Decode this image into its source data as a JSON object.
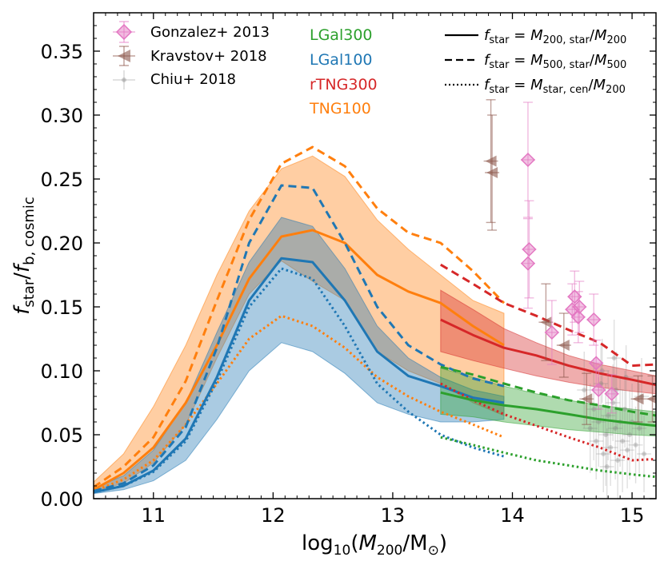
{
  "chart_data": {
    "type": "line",
    "xlabel": "log10(M200/M⊙)",
    "ylabel": "fstar/fb,cosmic",
    "xlim": [
      10.5,
      15.2
    ],
    "ylim": [
      0.0,
      0.38
    ],
    "xticks": [
      {
        "value": 11,
        "label": "11"
      },
      {
        "value": 12,
        "label": "12"
      },
      {
        "value": 13,
        "label": "13"
      },
      {
        "value": 14,
        "label": "14"
      },
      {
        "value": 15,
        "label": "15"
      }
    ],
    "yticks": [
      {
        "value": 0.0,
        "label": "0.00"
      },
      {
        "value": 0.05,
        "label": "0.05"
      },
      {
        "value": 0.1,
        "label": "0.10"
      },
      {
        "value": 0.15,
        "label": "0.15"
      },
      {
        "value": 0.2,
        "label": "0.20"
      },
      {
        "value": 0.25,
        "label": "0.25"
      },
      {
        "value": 0.3,
        "label": "0.30"
      },
      {
        "value": 0.35,
        "label": "0.35"
      }
    ],
    "colors": {
      "LGal300": "#2ca02c",
      "LGal100": "#1f77b4",
      "rTNG300": "#d62728",
      "TNG100": "#ff7f0e",
      "Gonzalez": "#e377c2",
      "Kravstov": "#8c564b",
      "Chiu": "#7f7f7f"
    },
    "bands": [
      {
        "name": "TNG100",
        "color": "#ff7f0e",
        "x": [
          10.5,
          10.75,
          11.0,
          11.27,
          11.53,
          11.8,
          12.07,
          12.33,
          12.6,
          12.87,
          13.13,
          13.4,
          13.67,
          13.93
        ],
        "upper": [
          0.013,
          0.035,
          0.072,
          0.12,
          0.175,
          0.225,
          0.258,
          0.268,
          0.252,
          0.218,
          0.195,
          0.175,
          0.155,
          0.145
        ],
        "lower": [
          0.006,
          0.012,
          0.028,
          0.058,
          0.11,
          0.16,
          0.186,
          0.17,
          0.155,
          0.115,
          0.1,
          0.09,
          0.075,
          0.065
        ]
      },
      {
        "name": "LGal100",
        "color": "#1f77b4",
        "x": [
          10.5,
          10.75,
          11.0,
          11.27,
          11.53,
          11.8,
          12.07,
          12.33,
          12.6,
          12.87,
          13.13,
          13.4,
          13.67,
          13.93
        ],
        "upper": [
          0.008,
          0.018,
          0.038,
          0.075,
          0.13,
          0.185,
          0.22,
          0.213,
          0.18,
          0.135,
          0.11,
          0.095,
          0.085,
          0.08
        ],
        "lower": [
          0.004,
          0.007,
          0.014,
          0.03,
          0.062,
          0.1,
          0.122,
          0.115,
          0.098,
          0.075,
          0.066,
          0.06,
          0.06,
          0.062
        ]
      },
      {
        "name": "rTNG300",
        "color": "#d62728",
        "x": [
          13.4,
          13.67,
          13.93,
          14.2,
          14.47,
          14.73,
          15.0,
          15.2
        ],
        "upper": [
          0.163,
          0.148,
          0.133,
          0.122,
          0.112,
          0.105,
          0.1,
          0.096
        ],
        "lower": [
          0.115,
          0.108,
          0.102,
          0.096,
          0.091,
          0.087,
          0.084,
          0.082
        ]
      },
      {
        "name": "LGal300",
        "color": "#2ca02c",
        "x": [
          13.4,
          13.67,
          13.93,
          14.2,
          14.47,
          14.73,
          15.0,
          15.2
        ],
        "upper": [
          0.102,
          0.095,
          0.088,
          0.082,
          0.077,
          0.073,
          0.07,
          0.068
        ],
        "lower": [
          0.066,
          0.064,
          0.06,
          0.057,
          0.054,
          0.052,
          0.05,
          0.049
        ]
      }
    ],
    "series": [
      {
        "name": "TNG100 M200",
        "model": "TNG100",
        "style": "solid",
        "color": "#ff7f0e",
        "x": [
          10.5,
          10.75,
          11.0,
          11.27,
          11.53,
          11.8,
          12.07,
          12.33,
          12.6,
          12.87,
          13.13,
          13.4,
          13.67,
          13.93
        ],
        "y": [
          0.007,
          0.02,
          0.04,
          0.075,
          0.12,
          0.172,
          0.205,
          0.21,
          0.2,
          0.175,
          0.162,
          0.153,
          0.135,
          0.12
        ]
      },
      {
        "name": "TNG100 M500",
        "model": "TNG100",
        "style": "dashed",
        "color": "#ff7f0e",
        "x": [
          10.5,
          10.75,
          11.0,
          11.27,
          11.53,
          11.8,
          12.07,
          12.33,
          12.6,
          12.87,
          13.13,
          13.4,
          13.67,
          13.93
        ],
        "y": [
          0.009,
          0.025,
          0.048,
          0.092,
          0.155,
          0.218,
          0.262,
          0.275,
          0.26,
          0.227,
          0.208,
          0.2,
          0.178,
          0.153
        ]
      },
      {
        "name": "TNG100 cen",
        "model": "TNG100",
        "style": "dotted",
        "color": "#ff7f0e",
        "x": [
          10.5,
          10.75,
          11.0,
          11.27,
          11.53,
          11.8,
          12.07,
          12.33,
          12.6,
          12.87,
          13.13,
          13.4,
          13.67,
          13.93
        ],
        "y": [
          0.006,
          0.015,
          0.03,
          0.058,
          0.09,
          0.125,
          0.143,
          0.135,
          0.118,
          0.095,
          0.08,
          0.068,
          0.058,
          0.048
        ]
      },
      {
        "name": "LGal100 M200",
        "model": "LGal100",
        "style": "solid",
        "color": "#1f77b4",
        "x": [
          10.5,
          10.75,
          11.0,
          11.27,
          11.53,
          11.8,
          12.07,
          12.33,
          12.6,
          12.87,
          13.13,
          13.4,
          13.67,
          13.93
        ],
        "y": [
          0.005,
          0.01,
          0.022,
          0.047,
          0.095,
          0.155,
          0.188,
          0.185,
          0.155,
          0.115,
          0.096,
          0.088,
          0.079,
          0.075
        ]
      },
      {
        "name": "LGal100 M500",
        "model": "LGal100",
        "style": "dashed",
        "color": "#1f77b4",
        "x": [
          10.5,
          10.75,
          11.0,
          11.27,
          11.53,
          11.8,
          12.07,
          12.33,
          12.6,
          12.87,
          13.13,
          13.4,
          13.67,
          13.93
        ],
        "y": [
          0.006,
          0.012,
          0.026,
          0.056,
          0.118,
          0.2,
          0.245,
          0.243,
          0.2,
          0.15,
          0.12,
          0.105,
          0.094,
          0.088
        ]
      },
      {
        "name": "LGal100 cen",
        "model": "LGal100",
        "style": "dotted",
        "color": "#1f77b4",
        "x": [
          10.5,
          10.75,
          11.0,
          11.27,
          11.53,
          11.8,
          12.07,
          12.33,
          12.6,
          12.87,
          13.13,
          13.4,
          13.67,
          13.93
        ],
        "y": [
          0.005,
          0.01,
          0.021,
          0.045,
          0.092,
          0.15,
          0.18,
          0.172,
          0.135,
          0.09,
          0.068,
          0.05,
          0.04,
          0.033
        ]
      },
      {
        "name": "rTNG300 M200",
        "model": "rTNG300",
        "style": "solid",
        "color": "#d62728",
        "x": [
          13.4,
          13.67,
          13.93,
          14.2,
          14.47,
          14.73,
          15.0,
          15.2
        ],
        "y": [
          0.14,
          0.128,
          0.118,
          0.112,
          0.104,
          0.098,
          0.093,
          0.089
        ]
      },
      {
        "name": "rTNG300 M500",
        "model": "rTNG300",
        "style": "dashed",
        "color": "#d62728",
        "x": [
          13.4,
          13.67,
          13.93,
          14.2,
          14.47,
          14.73,
          15.0,
          15.2
        ],
        "y": [
          0.183,
          0.168,
          0.153,
          0.143,
          0.132,
          0.122,
          0.104,
          0.105
        ]
      },
      {
        "name": "rTNG300 cen",
        "model": "rTNG300",
        "style": "dotted",
        "color": "#d62728",
        "x": [
          13.4,
          13.67,
          13.93,
          14.2,
          14.47,
          14.73,
          15.0,
          15.2
        ],
        "y": [
          0.09,
          0.077,
          0.066,
          0.057,
          0.048,
          0.04,
          0.03,
          0.031
        ]
      },
      {
        "name": "LGal300 M200",
        "model": "LGal300",
        "style": "solid",
        "color": "#2ca02c",
        "x": [
          13.4,
          13.67,
          13.93,
          14.2,
          14.47,
          14.73,
          15.0,
          15.2
        ],
        "y": [
          0.083,
          0.077,
          0.073,
          0.07,
          0.066,
          0.062,
          0.059,
          0.057
        ]
      },
      {
        "name": "LGal300 M500",
        "model": "LGal300",
        "style": "dashed",
        "color": "#2ca02c",
        "x": [
          13.4,
          13.67,
          13.93,
          14.2,
          14.47,
          14.73,
          15.0,
          15.2
        ],
        "y": [
          0.103,
          0.097,
          0.09,
          0.083,
          0.077,
          0.073,
          0.068,
          0.065
        ]
      },
      {
        "name": "LGal300 cen",
        "model": "LGal300",
        "style": "dotted",
        "color": "#2ca02c",
        "x": [
          13.4,
          13.67,
          13.93,
          14.2,
          14.47,
          14.73,
          15.0,
          15.2
        ],
        "y": [
          0.048,
          0.042,
          0.036,
          0.03,
          0.026,
          0.022,
          0.019,
          0.017
        ]
      }
    ],
    "observations": {
      "gonzalez": {
        "label": "Gonzalez+ 2013",
        "points": [
          {
            "x": 14.13,
            "y": 0.265,
            "err": 0.045
          },
          {
            "x": 14.14,
            "y": 0.195,
            "err": 0.038
          },
          {
            "x": 14.13,
            "y": 0.184,
            "err": 0.035
          },
          {
            "x": 14.33,
            "y": 0.13,
            "err": 0.025
          },
          {
            "x": 14.52,
            "y": 0.158,
            "err": 0.02
          },
          {
            "x": 14.5,
            "y": 0.148,
            "err": 0.02
          },
          {
            "x": 14.55,
            "y": 0.142,
            "err": 0.02
          },
          {
            "x": 14.56,
            "y": 0.15,
            "err": 0.02
          },
          {
            "x": 14.68,
            "y": 0.14,
            "err": 0.02
          },
          {
            "x": 14.7,
            "y": 0.106,
            "err": 0.018
          },
          {
            "x": 14.72,
            "y": 0.085,
            "err": 0.015
          },
          {
            "x": 14.83,
            "y": 0.082,
            "err": 0.015
          }
        ]
      },
      "kravstov": {
        "label": "Kravstov+ 2018",
        "points": [
          {
            "x": 13.82,
            "y": 0.264,
            "err": 0.048
          },
          {
            "x": 13.83,
            "y": 0.255,
            "err": 0.045
          },
          {
            "x": 14.28,
            "y": 0.138,
            "err": 0.03
          },
          {
            "x": 14.43,
            "y": 0.12,
            "err": 0.025
          },
          {
            "x": 14.62,
            "y": 0.078,
            "err": 0.02
          },
          {
            "x": 15.05,
            "y": 0.078,
            "err": 0.018
          },
          {
            "x": 15.17,
            "y": 0.078,
            "err": 0.018
          }
        ]
      },
      "chiu": {
        "label": "Chiu+ 2018",
        "points": [
          {
            "x": 14.65,
            "y": 0.055,
            "err": 0.035
          },
          {
            "x": 14.68,
            "y": 0.07,
            "err": 0.04
          },
          {
            "x": 14.7,
            "y": 0.045,
            "err": 0.03
          },
          {
            "x": 14.72,
            "y": 0.06,
            "err": 0.035
          },
          {
            "x": 14.74,
            "y": 0.09,
            "err": 0.03
          },
          {
            "x": 14.76,
            "y": 0.035,
            "err": 0.03
          },
          {
            "x": 14.78,
            "y": 0.05,
            "err": 0.04
          },
          {
            "x": 14.8,
            "y": 0.065,
            "err": 0.035
          },
          {
            "x": 14.82,
            "y": 0.04,
            "err": 0.03
          },
          {
            "x": 14.84,
            "y": 0.075,
            "err": 0.03
          },
          {
            "x": 14.86,
            "y": 0.055,
            "err": 0.04
          },
          {
            "x": 14.88,
            "y": 0.03,
            "err": 0.03
          },
          {
            "x": 14.9,
            "y": 0.06,
            "err": 0.035
          },
          {
            "x": 14.92,
            "y": 0.045,
            "err": 0.04
          },
          {
            "x": 14.94,
            "y": 0.07,
            "err": 0.03
          },
          {
            "x": 14.96,
            "y": 0.038,
            "err": 0.03
          },
          {
            "x": 14.98,
            "y": 0.05,
            "err": 0.035
          },
          {
            "x": 15.0,
            "y": 0.06,
            "err": 0.03
          },
          {
            "x": 15.03,
            "y": 0.042,
            "err": 0.03
          },
          {
            "x": 15.06,
            "y": 0.055,
            "err": 0.035
          },
          {
            "x": 15.1,
            "y": 0.035,
            "err": 0.03
          },
          {
            "x": 14.6,
            "y": 0.085,
            "err": 0.03
          },
          {
            "x": 14.75,
            "y": 0.1,
            "err": 0.025
          },
          {
            "x": 14.85,
            "y": 0.11,
            "err": 0.03
          },
          {
            "x": 14.95,
            "y": 0.095,
            "err": 0.025
          },
          {
            "x": 15.08,
            "y": 0.08,
            "err": 0.03
          },
          {
            "x": 14.79,
            "y": 0.025,
            "err": 0.03
          },
          {
            "x": 14.87,
            "y": 0.085,
            "err": 0.03
          }
        ]
      }
    },
    "legend": {
      "observations": [
        "Gonzalez+ 2013",
        "Kravstov+ 2018",
        "Chiu+ 2018"
      ],
      "models": [
        {
          "label": "LGal300",
          "color": "#2ca02c"
        },
        {
          "label": "LGal100",
          "color": "#1f77b4"
        },
        {
          "label": "rTNG300",
          "color": "#d62728"
        },
        {
          "label": "TNG100",
          "color": "#ff7f0e"
        }
      ],
      "line_styles": [
        {
          "style": "solid",
          "f": "f",
          "f_sub": "star",
          "eq": " = ",
          "num": "M",
          "num_sub": "200, star",
          "div": "/",
          "den": "M",
          "den_sub": "200"
        },
        {
          "style": "dashed",
          "f": "f",
          "f_sub": "star",
          "eq": " = ",
          "num": "M",
          "num_sub": "500, star",
          "div": "/",
          "den": "M",
          "den_sub": "500"
        },
        {
          "style": "dotted",
          "f": "f",
          "f_sub": "star",
          "eq": " = ",
          "num": "M",
          "num_sub": "star, cen",
          "div": "/",
          "den": "M",
          "den_sub": "200"
        }
      ]
    },
    "axis_text": {
      "x_pre": "log",
      "x_sub10": "10",
      "x_open": "(",
      "x_M": "M",
      "x_sub200": "200",
      "x_slash": "/M",
      "x_sun": "⊙",
      "x_close": ")",
      "y_f": "f",
      "y_sub1": "star",
      "y_slash": "/",
      "y_f2": "f",
      "y_sub2": "b, cosmic"
    }
  }
}
